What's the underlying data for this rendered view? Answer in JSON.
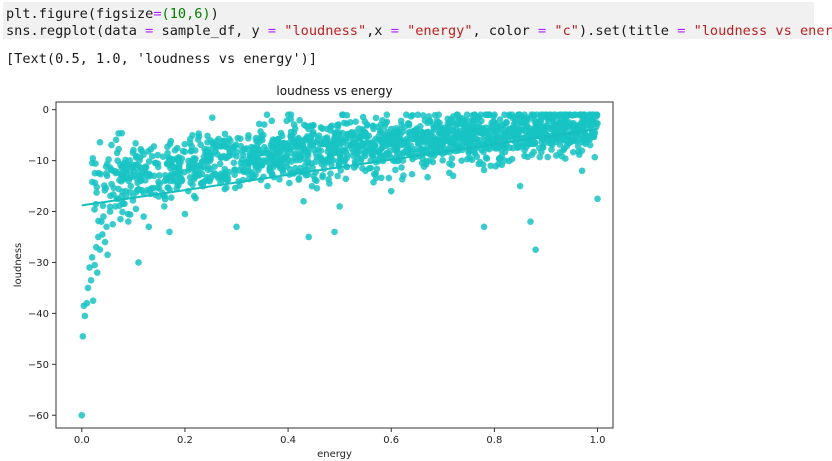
{
  "cell": {
    "line1": {
      "prefix": "plt.figure(figsize",
      "op": "=",
      "args": "(10,6)",
      "close": ")"
    },
    "line2": {
      "p1": "sns.regplot(data ",
      "eq1": "=",
      "p2": " sample_df, y ",
      "eq2": "=",
      "s1": "\"loudness\"",
      "p3": ",x ",
      "eq3": "=",
      "s2": "\"energy\"",
      "p4": ", color ",
      "eq4": "=",
      "s3": "\"c\"",
      "p5": ").set(title ",
      "eq5": "=",
      "s4": "\"loudness vs energy\"",
      "p6": ")"
    },
    "output": "[Text(0.5, 1.0, 'loudness vs energy')]"
  },
  "colors": {
    "point": "#17c3c3",
    "line": "#16bfbf",
    "axis": "#333333"
  },
  "chart_data": {
    "type": "scatter",
    "title": "loudness vs energy",
    "xlabel": "energy",
    "ylabel": "loudness",
    "xlim": [
      -0.05,
      1.03
    ],
    "ylim": [
      -62.5,
      1.5
    ],
    "xticks": [
      0.0,
      0.2,
      0.4,
      0.6,
      0.8,
      1.0
    ],
    "xtick_labels": [
      "0.0",
      "0.2",
      "0.4",
      "0.6",
      "0.8",
      "1.0"
    ],
    "yticks": [
      0,
      -10,
      -20,
      -30,
      -40,
      -50,
      -60
    ],
    "ytick_labels": [
      "0",
      "−10",
      "−20",
      "−30",
      "−40",
      "−50",
      "−60"
    ],
    "grid": false,
    "series": [
      {
        "points": [
          [
            0.0,
            -60.0
          ],
          [
            0.002,
            -44.5
          ],
          [
            0.004,
            -38.5
          ],
          [
            0.006,
            -40.5
          ],
          [
            0.01,
            -38.0
          ],
          [
            0.012,
            -35.0
          ],
          [
            0.018,
            -33.5
          ],
          [
            0.022,
            -37.5
          ],
          [
            0.015,
            -31.0
          ],
          [
            0.02,
            -29.0
          ],
          [
            0.025,
            -30.5
          ],
          [
            0.03,
            -32.0
          ],
          [
            0.028,
            -27.0
          ],
          [
            0.032,
            -25.0
          ],
          [
            0.035,
            -27.5
          ],
          [
            0.04,
            -24.5
          ],
          [
            0.045,
            -26.0
          ],
          [
            0.05,
            -28.5
          ],
          [
            0.038,
            -22.0
          ],
          [
            0.042,
            -21.0
          ],
          [
            0.048,
            -23.0
          ],
          [
            0.055,
            -20.0
          ],
          [
            0.06,
            -22.5
          ],
          [
            0.065,
            -19.0
          ],
          [
            0.07,
            -17.5
          ],
          [
            0.075,
            -21.5
          ],
          [
            0.08,
            -18.5
          ],
          [
            0.085,
            -16.0
          ],
          [
            0.09,
            -20.5
          ],
          [
            0.095,
            -15.0
          ],
          [
            0.1,
            -17.0
          ],
          [
            0.105,
            -19.5
          ],
          [
            0.11,
            -30.0
          ],
          [
            0.115,
            -14.0
          ],
          [
            0.12,
            -21.0
          ],
          [
            0.13,
            -23.0
          ],
          [
            0.14,
            -13.0
          ],
          [
            0.15,
            -15.5
          ],
          [
            0.16,
            -19.0
          ],
          [
            0.17,
            -24.0
          ],
          [
            0.18,
            -12.0
          ],
          [
            0.2,
            -20.5
          ],
          [
            0.22,
            -11.0
          ],
          [
            0.25,
            -13.5
          ],
          [
            0.28,
            -9.5
          ],
          [
            0.3,
            -23.0
          ],
          [
            0.33,
            -8.5
          ],
          [
            0.36,
            -15.0
          ],
          [
            0.4,
            -7.0
          ],
          [
            0.43,
            -18.0
          ],
          [
            0.45,
            -6.5
          ],
          [
            0.48,
            -14.5
          ],
          [
            0.5,
            -19.0
          ],
          [
            0.52,
            -5.5
          ],
          [
            0.49,
            -24.0
          ],
          [
            0.44,
            -25.0
          ],
          [
            0.55,
            -12.0
          ],
          [
            0.58,
            -4.5
          ],
          [
            0.6,
            -16.0
          ],
          [
            0.63,
            -7.5
          ],
          [
            0.66,
            -10.5
          ],
          [
            0.7,
            -4.0
          ],
          [
            0.72,
            -13.0
          ],
          [
            0.75,
            -8.0
          ],
          [
            0.78,
            -23.0
          ],
          [
            0.8,
            -3.5
          ],
          [
            0.82,
            -10.0
          ],
          [
            0.85,
            -15.0
          ],
          [
            0.87,
            -22.0
          ],
          [
            0.88,
            -27.5
          ],
          [
            0.9,
            -5.0
          ],
          [
            0.92,
            -9.0
          ],
          [
            0.95,
            -3.0
          ],
          [
            0.97,
            -12.0
          ],
          [
            0.99,
            -2.0
          ],
          [
            1.0,
            -17.5
          ],
          [
            0.84,
            -1.5
          ],
          [
            0.93,
            -2.5
          ],
          [
            0.62,
            -3.0
          ],
          [
            0.35,
            -6.0
          ]
        ]
      }
    ],
    "fit_line": {
      "x": [
        0.0,
        1.0
      ],
      "y": [
        -18.8,
        -3.8
      ]
    }
  }
}
